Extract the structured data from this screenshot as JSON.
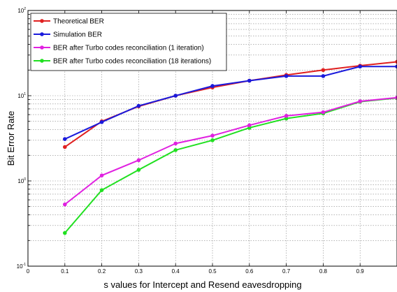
{
  "chart_data": {
    "type": "line",
    "xlabel": "s values for Intercept and Resend eavesdropping",
    "ylabel": "Bit Error Rate",
    "xlim": [
      0,
      1
    ],
    "ylim_log10": [
      -1,
      2
    ],
    "y_scale": "log",
    "x_ticks": [
      "0",
      "0.1",
      "0.2",
      "0.3",
      "0.4",
      "0.5",
      "0.6",
      "0.7",
      "0.8",
      "0.9"
    ],
    "y_ticks": [
      {
        "base": "10",
        "exp": "-1",
        "value": 0.1
      },
      {
        "base": "10",
        "exp": "0",
        "value": 1
      },
      {
        "base": "10",
        "exp": "1",
        "value": 10
      },
      {
        "base": "10",
        "exp": "2",
        "value": 100
      }
    ],
    "grid": true,
    "legend_position": "top-left",
    "x": [
      0.1,
      0.2,
      0.3,
      0.4,
      0.5,
      0.6,
      0.7,
      0.8,
      0.9,
      1.0
    ],
    "series": [
      {
        "name": "Theoretical BER",
        "color": "#e02020",
        "values": [
          2.5,
          5.0,
          7.5,
          10.0,
          12.5,
          15.0,
          17.5,
          20.0,
          22.5,
          25.0
        ]
      },
      {
        "name": "Simulation BER",
        "color": "#1a1adc",
        "values": [
          3.1,
          4.9,
          7.6,
          10.0,
          13.0,
          15.0,
          17.0,
          17.0,
          22.0,
          22.0
        ]
      },
      {
        "name": "BER after Turbo codes reconciliation (1 iteration)",
        "color": "#e020e0",
        "values": [
          0.53,
          1.16,
          1.75,
          2.75,
          3.4,
          4.5,
          5.8,
          6.4,
          8.6,
          9.5
        ]
      },
      {
        "name": "BER after Turbo codes reconciliation (18 iterations)",
        "color": "#20e020",
        "values": [
          0.245,
          0.78,
          1.35,
          2.3,
          3.0,
          4.2,
          5.4,
          6.2,
          8.5,
          9.4
        ]
      }
    ]
  }
}
